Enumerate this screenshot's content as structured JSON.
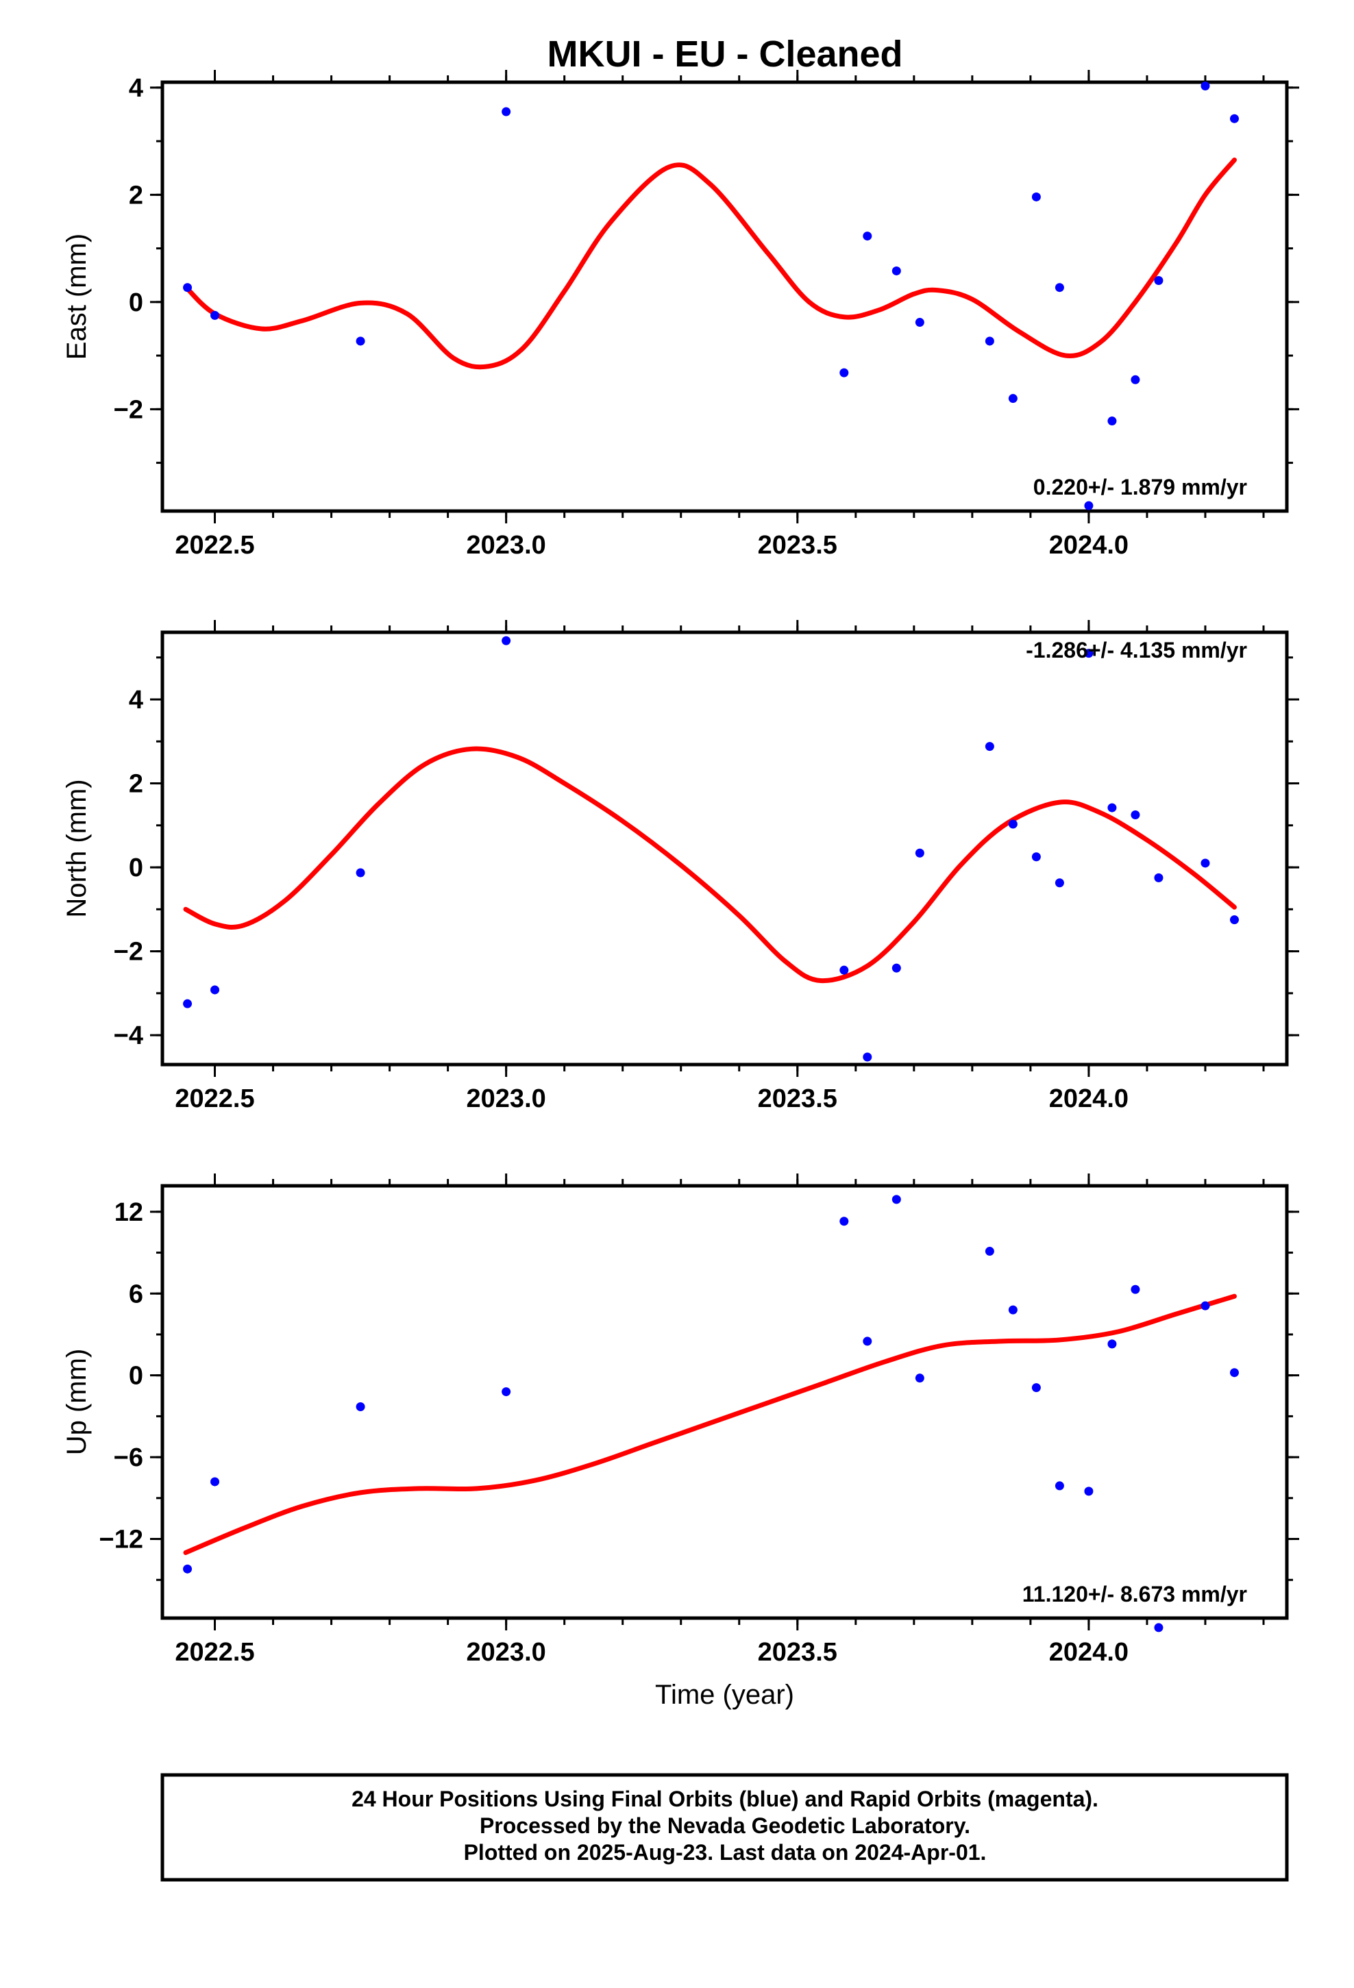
{
  "title": "MKUI  - EU - Cleaned",
  "colors": {
    "final_orbits": "#0000ff",
    "fit_curve": "#ff0000",
    "frame": "#000000"
  },
  "chart_data": [
    {
      "type": "scatter",
      "panel": "east",
      "ylabel": "East (mm)",
      "xlabel": "",
      "xlim": [
        2022.41,
        2024.34
      ],
      "ylim": [
        -3.9,
        4.1
      ],
      "xticks": [
        "2022.5",
        "2023.0",
        "2023.5",
        "2024.0"
      ],
      "yticks": [
        "4",
        "2",
        "0",
        "−2"
      ],
      "rate_text": "0.220+/- 1.879 mm/yr",
      "series": [
        {
          "values": [
            [
              2022.453,
              0.27
            ],
            [
              2022.5,
              -0.25
            ],
            [
              2022.75,
              -0.73
            ],
            [
              2023.0,
              3.55
            ],
            [
              2023.58,
              -1.32
            ],
            [
              2023.62,
              1.23
            ],
            [
              2023.67,
              0.58
            ],
            [
              2023.71,
              -0.38
            ],
            [
              2023.83,
              -0.73
            ],
            [
              2023.87,
              -1.8
            ],
            [
              2023.91,
              1.96
            ],
            [
              2023.95,
              0.27
            ],
            [
              2024.0,
              -3.8
            ],
            [
              2024.04,
              -2.22
            ],
            [
              2024.08,
              -1.45
            ],
            [
              2024.12,
              0.4
            ],
            [
              2024.2,
              4.03
            ],
            [
              2024.25,
              3.42
            ]
          ]
        }
      ],
      "fit": [
        [
          2022.45,
          0.28
        ],
        [
          2022.5,
          -0.22
        ],
        [
          2022.58,
          -0.5
        ],
        [
          2022.65,
          -0.35
        ],
        [
          2022.75,
          -0.02
        ],
        [
          2022.83,
          -0.22
        ],
        [
          2022.91,
          -1.05
        ],
        [
          2022.97,
          -1.2
        ],
        [
          2023.03,
          -0.85
        ],
        [
          2023.1,
          0.2
        ],
        [
          2023.18,
          1.5
        ],
        [
          2023.28,
          2.52
        ],
        [
          2023.35,
          2.2
        ],
        [
          2023.45,
          0.9
        ],
        [
          2023.52,
          0.0
        ],
        [
          2023.58,
          -0.28
        ],
        [
          2023.64,
          -0.15
        ],
        [
          2023.7,
          0.15
        ],
        [
          2023.74,
          0.22
        ],
        [
          2023.8,
          0.05
        ],
        [
          2023.88,
          -0.55
        ],
        [
          2023.96,
          -1.0
        ],
        [
          2024.02,
          -0.75
        ],
        [
          2024.08,
          0.0
        ],
        [
          2024.15,
          1.1
        ],
        [
          2024.2,
          2.0
        ],
        [
          2024.25,
          2.65
        ]
      ]
    },
    {
      "type": "scatter",
      "panel": "north",
      "ylabel": "North (mm)",
      "xlabel": "",
      "xlim": [
        2022.41,
        2024.34
      ],
      "ylim": [
        -4.7,
        5.6
      ],
      "xticks": [
        "2022.5",
        "2023.0",
        "2023.5",
        "2024.0"
      ],
      "yticks": [
        "4",
        "2",
        "0",
        "−2",
        "−4"
      ],
      "rate_text": "-1.286+/- 4.135 mm/yr",
      "series": [
        {
          "values": [
            [
              2022.453,
              -3.25
            ],
            [
              2022.5,
              -2.92
            ],
            [
              2022.75,
              -0.13
            ],
            [
              2023.0,
              5.4
            ],
            [
              2023.58,
              -2.45
            ],
            [
              2023.62,
              -4.52
            ],
            [
              2023.67,
              -2.4
            ],
            [
              2023.71,
              0.34
            ],
            [
              2023.83,
              2.88
            ],
            [
              2023.87,
              1.03
            ],
            [
              2023.91,
              0.25
            ],
            [
              2023.95,
              -0.37
            ],
            [
              2024.0,
              5.1
            ],
            [
              2024.04,
              1.42
            ],
            [
              2024.08,
              1.25
            ],
            [
              2024.12,
              -0.25
            ],
            [
              2024.2,
              0.1
            ],
            [
              2024.25,
              -1.25
            ]
          ]
        }
      ],
      "fit": [
        [
          2022.45,
          -1.0
        ],
        [
          2022.5,
          -1.35
        ],
        [
          2022.55,
          -1.38
        ],
        [
          2022.62,
          -0.8
        ],
        [
          2022.7,
          0.3
        ],
        [
          2022.78,
          1.5
        ],
        [
          2022.86,
          2.45
        ],
        [
          2022.94,
          2.82
        ],
        [
          2023.02,
          2.62
        ],
        [
          2023.1,
          2.0
        ],
        [
          2023.2,
          1.1
        ],
        [
          2023.3,
          0.05
        ],
        [
          2023.4,
          -1.15
        ],
        [
          2023.48,
          -2.25
        ],
        [
          2023.54,
          -2.7
        ],
        [
          2023.62,
          -2.35
        ],
        [
          2023.7,
          -1.3
        ],
        [
          2023.78,
          0.05
        ],
        [
          2023.86,
          1.05
        ],
        [
          2023.95,
          1.55
        ],
        [
          2024.02,
          1.3
        ],
        [
          2024.1,
          0.65
        ],
        [
          2024.18,
          -0.15
        ],
        [
          2024.25,
          -0.95
        ]
      ]
    },
    {
      "type": "scatter",
      "panel": "up",
      "ylabel": "Up (mm)",
      "xlabel": "Time (year)",
      "xlim": [
        2022.41,
        2024.34
      ],
      "ylim": [
        -17.8,
        13.9
      ],
      "xticks": [
        "2022.5",
        "2023.0",
        "2023.5",
        "2024.0"
      ],
      "yticks": [
        "12",
        "6",
        "0",
        "−6",
        "−12"
      ],
      "rate_text": "11.120+/- 8.673 mm/yr",
      "series": [
        {
          "values": [
            [
              2022.453,
              -14.2
            ],
            [
              2022.5,
              -7.8
            ],
            [
              2022.75,
              -2.3
            ],
            [
              2023.0,
              -1.2
            ],
            [
              2023.58,
              11.3
            ],
            [
              2023.62,
              2.5
            ],
            [
              2023.67,
              12.9
            ],
            [
              2023.71,
              -0.2
            ],
            [
              2023.83,
              9.1
            ],
            [
              2023.87,
              4.8
            ],
            [
              2023.91,
              -0.9
            ],
            [
              2023.95,
              -8.1
            ],
            [
              2024.0,
              -8.5
            ],
            [
              2024.04,
              2.3
            ],
            [
              2024.08,
              6.3
            ],
            [
              2024.12,
              -18.5
            ],
            [
              2024.2,
              5.1
            ],
            [
              2024.25,
              0.2
            ]
          ]
        }
      ],
      "fit": [
        [
          2022.45,
          -13.0
        ],
        [
          2022.55,
          -11.2
        ],
        [
          2022.65,
          -9.6
        ],
        [
          2022.75,
          -8.6
        ],
        [
          2022.85,
          -8.3
        ],
        [
          2022.95,
          -8.3
        ],
        [
          2023.05,
          -7.7
        ],
        [
          2023.15,
          -6.5
        ],
        [
          2023.25,
          -5.0
        ],
        [
          2023.35,
          -3.5
        ],
        [
          2023.45,
          -2.0
        ],
        [
          2023.55,
          -0.5
        ],
        [
          2023.65,
          1.0
        ],
        [
          2023.75,
          2.2
        ],
        [
          2023.85,
          2.5
        ],
        [
          2023.95,
          2.6
        ],
        [
          2024.05,
          3.2
        ],
        [
          2024.15,
          4.5
        ],
        [
          2024.25,
          5.8
        ]
      ]
    }
  ],
  "footer": {
    "line1": "24 Hour Positions Using Final Orbits (blue) and Rapid Orbits (magenta).",
    "line2": "Processed by the Nevada Geodetic Laboratory.",
    "line3": "Plotted on 2025-Aug-23. Last data on 2024-Apr-01."
  }
}
